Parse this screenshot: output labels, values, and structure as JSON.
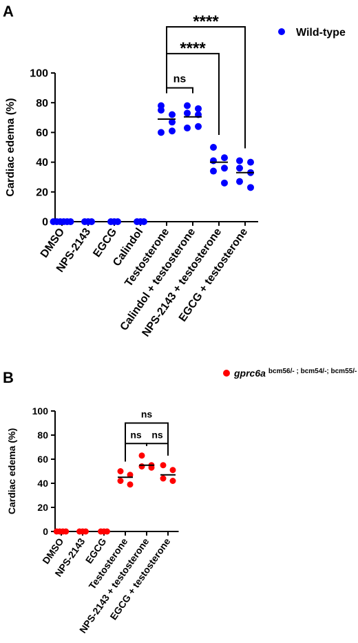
{
  "chart_data": [
    {
      "type": "scatter",
      "panel": "A",
      "ylabel": "Cardiac edema (%)",
      "ylim": [
        0,
        100
      ],
      "yticks": [
        "0",
        "20",
        "40",
        "60",
        "80",
        "100"
      ],
      "categories": [
        "DMSO",
        "NPS-2143",
        "EGCG",
        "Calindol",
        "Testosterone",
        "Calindol + testosterone",
        "NPS-2143 + testosterone",
        "EGCG + testosterone"
      ],
      "legend": {
        "label": "Wild-type",
        "placement": "top-right"
      },
      "color": "#0000ff",
      "series": [
        {
          "category": "DMSO",
          "values": [
            0,
            0,
            0,
            0,
            0,
            0
          ],
          "mean": 0
        },
        {
          "category": "NPS-2143",
          "values": [
            0,
            0,
            0
          ],
          "mean": 0
        },
        {
          "category": "EGCG",
          "values": [
            0,
            0,
            0
          ],
          "mean": 0
        },
        {
          "category": "Calindol",
          "values": [
            0,
            0,
            0
          ],
          "mean": 0
        },
        {
          "category": "Testosterone",
          "values": [
            78,
            72,
            75,
            67,
            60,
            61
          ],
          "mean": 69
        },
        {
          "category": "Calindol + testosterone",
          "values": [
            78,
            76,
            73,
            72,
            63,
            64
          ],
          "mean": 70.5
        },
        {
          "category": "NPS-2143 + testosterone",
          "values": [
            50,
            43,
            41,
            36,
            34,
            26
          ],
          "mean": 40
        },
        {
          "category": "EGCG + testosterone",
          "values": [
            41,
            40,
            36,
            33,
            27,
            23
          ],
          "mean": 33
        }
      ],
      "comparisons": [
        {
          "from": 4,
          "to": 5,
          "label": "ns",
          "y": 90
        },
        {
          "from": 4,
          "to": 6,
          "label": "****",
          "y": 113
        },
        {
          "from": 4,
          "to": 7,
          "label": "****",
          "y": 131
        }
      ]
    },
    {
      "type": "scatter",
      "panel": "B",
      "ylabel": "Cardiac edema (%)",
      "ylim": [
        0,
        100
      ],
      "yticks": [
        "0",
        "20",
        "40",
        "60",
        "80",
        "100"
      ],
      "categories": [
        "DMSO",
        "NPS-2143",
        "EGCG",
        "Testosterone",
        "NPS-2143 + testosterone",
        "EGCG + testosterone"
      ],
      "legend": {
        "label": "gprc6a",
        "superscript": "bcm56/- ; bcm54/-; bcm55/-",
        "placement": "top-right"
      },
      "color": "#ff0000",
      "series": [
        {
          "category": "DMSO",
          "values": [
            0,
            0,
            0,
            0
          ],
          "mean": 0
        },
        {
          "category": "NPS-2143",
          "values": [
            0,
            0,
            0
          ],
          "mean": 0
        },
        {
          "category": "EGCG",
          "values": [
            0,
            0,
            0
          ],
          "mean": 0
        },
        {
          "category": "Testosterone",
          "values": [
            50,
            47,
            42,
            39
          ],
          "mean": 45
        },
        {
          "category": "NPS-2143 + testosterone",
          "values": [
            63,
            55,
            54,
            53
          ],
          "mean": 55
        },
        {
          "category": "EGCG + testosterone",
          "values": [
            55,
            51,
            44,
            42
          ],
          "mean": 47
        }
      ],
      "comparisons": [
        {
          "from": 3,
          "to": 4,
          "label": "ns",
          "y": 73
        },
        {
          "from": 4,
          "to": 5,
          "label": "ns",
          "y": 73
        },
        {
          "from": 3,
          "to": 5,
          "label": "ns",
          "y": 90
        }
      ]
    }
  ]
}
